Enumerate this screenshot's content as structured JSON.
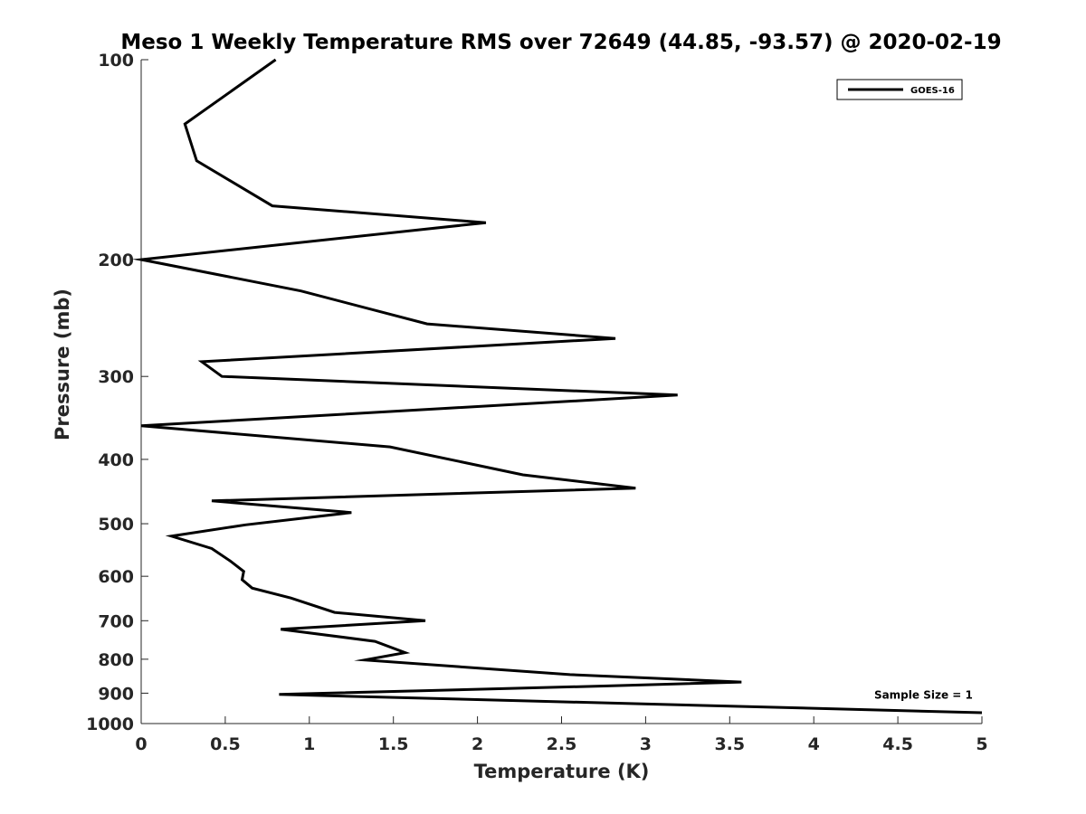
{
  "chart_data": {
    "type": "line",
    "title": "Meso 1 Weekly Temperature RMS over 72649 (44.85, -93.57) @ 2020-02-19",
    "xlabel": "Temperature (K)",
    "ylabel": "Pressure (mb)",
    "xlim": [
      0,
      5
    ],
    "ylim": [
      100,
      1000
    ],
    "y_scale": "log",
    "y_reversed": true,
    "x_ticks": [
      0,
      0.5,
      1,
      1.5,
      2,
      2.5,
      3,
      3.5,
      4,
      4.5,
      5
    ],
    "x_tick_labels": [
      "0",
      "0.5",
      "1",
      "1.5",
      "2",
      "2.5",
      "3",
      "3.5",
      "4",
      "4.5",
      "5"
    ],
    "y_ticks": [
      100,
      200,
      300,
      400,
      500,
      600,
      700,
      800,
      900,
      1000
    ],
    "y_tick_labels": [
      "100",
      "200",
      "300",
      "400",
      "500",
      "600",
      "700",
      "800",
      "900",
      "1000"
    ],
    "grid": false,
    "legend_position": "top-right",
    "series": [
      {
        "name": "GOES-16",
        "color": "#000000",
        "points": [
          {
            "x": 0.8,
            "p": 100
          },
          {
            "x": 0.26,
            "p": 125
          },
          {
            "x": 0.33,
            "p": 142
          },
          {
            "x": 0.78,
            "p": 166
          },
          {
            "x": 2.05,
            "p": 176
          },
          {
            "x": 0.0,
            "p": 200
          },
          {
            "x": 0.95,
            "p": 223
          },
          {
            "x": 1.7,
            "p": 250
          },
          {
            "x": 2.82,
            "p": 263
          },
          {
            "x": 0.36,
            "p": 285
          },
          {
            "x": 0.48,
            "p": 300
          },
          {
            "x": 3.19,
            "p": 320
          },
          {
            "x": 1.82,
            "p": 335
          },
          {
            "x": 0.0,
            "p": 356
          },
          {
            "x": 1.48,
            "p": 383
          },
          {
            "x": 2.27,
            "p": 422
          },
          {
            "x": 2.94,
            "p": 442
          },
          {
            "x": 0.42,
            "p": 462
          },
          {
            "x": 1.25,
            "p": 481
          },
          {
            "x": 0.62,
            "p": 502
          },
          {
            "x": 0.18,
            "p": 522
          },
          {
            "x": 0.42,
            "p": 545
          },
          {
            "x": 0.53,
            "p": 569
          },
          {
            "x": 0.61,
            "p": 590
          },
          {
            "x": 0.6,
            "p": 607
          },
          {
            "x": 0.66,
            "p": 625
          },
          {
            "x": 0.89,
            "p": 647
          },
          {
            "x": 1.15,
            "p": 680
          },
          {
            "x": 1.69,
            "p": 700
          },
          {
            "x": 0.83,
            "p": 721
          },
          {
            "x": 1.39,
            "p": 752
          },
          {
            "x": 1.57,
            "p": 782
          },
          {
            "x": 1.33,
            "p": 802
          },
          {
            "x": 2.55,
            "p": 844
          },
          {
            "x": 3.57,
            "p": 866
          },
          {
            "x": 2.75,
            "p": 878
          },
          {
            "x": 0.82,
            "p": 904
          },
          {
            "x": 5.0,
            "p": 963
          }
        ]
      }
    ],
    "annotations": [
      {
        "text": "Sample Size = 1",
        "x": 4.3,
        "p": 900
      }
    ]
  }
}
